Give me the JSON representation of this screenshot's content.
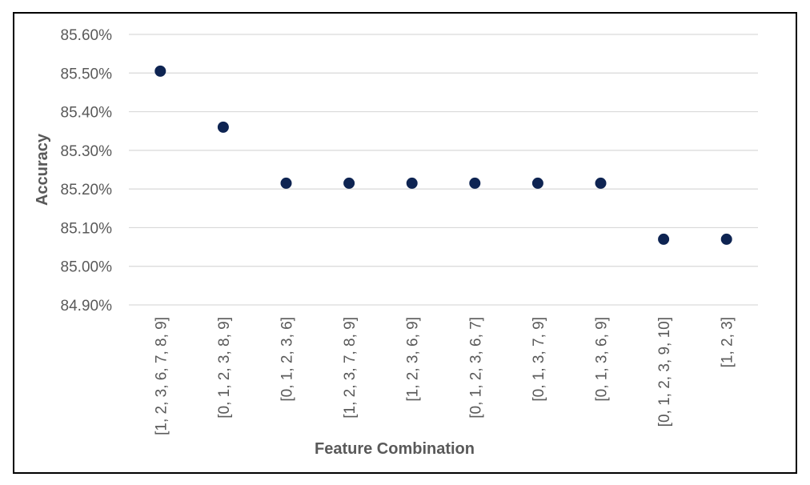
{
  "chart_data": {
    "type": "scatter",
    "title": "",
    "xlabel": "Feature Combination",
    "ylabel": "Accuracy",
    "categories": [
      "[1, 2, 3, 6, 7, 8, 9]",
      "[0, 1, 2, 3, 8, 9]",
      "[0, 1, 2, 3, 6]",
      "[1, 2, 3, 7, 8, 9]",
      "[1, 2, 3, 6, 9]",
      "[0, 1, 2, 3, 6, 7]",
      "[0, 1, 3, 7, 9]",
      "[0, 1, 3, 6, 9]",
      "[0, 1, 2, 3, 9, 10]",
      "[1, 2, 3]"
    ],
    "values": [
      85.505,
      85.36,
      85.215,
      85.215,
      85.215,
      85.215,
      85.215,
      85.215,
      85.07,
      85.07
    ],
    "ylim": [
      84.9,
      85.6
    ],
    "yticks": [
      "84.90%",
      "85.00%",
      "85.10%",
      "85.20%",
      "85.30%",
      "85.40%",
      "85.50%",
      "85.60%"
    ],
    "grid": true,
    "legend": "none",
    "marker_color": "#0e2452"
  }
}
